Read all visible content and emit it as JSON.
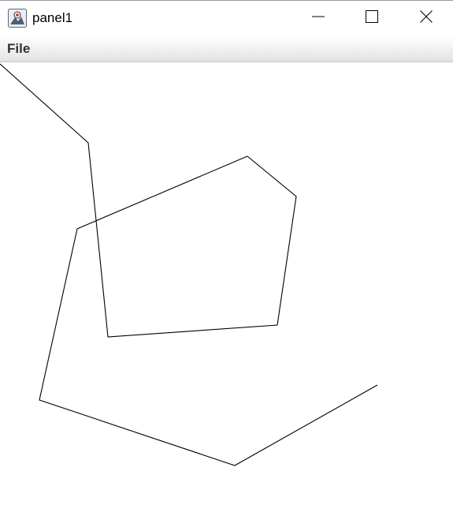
{
  "window": {
    "title": "panel1",
    "app_icon": "java-duke-icon",
    "controls": [
      "minimize-icon",
      "maximize-icon",
      "close-icon"
    ]
  },
  "menu": {
    "items": [
      {
        "label": "File"
      }
    ]
  },
  "colors": {
    "background": "#ffffff",
    "line": "#000000",
    "menu_text": "#333333"
  }
}
